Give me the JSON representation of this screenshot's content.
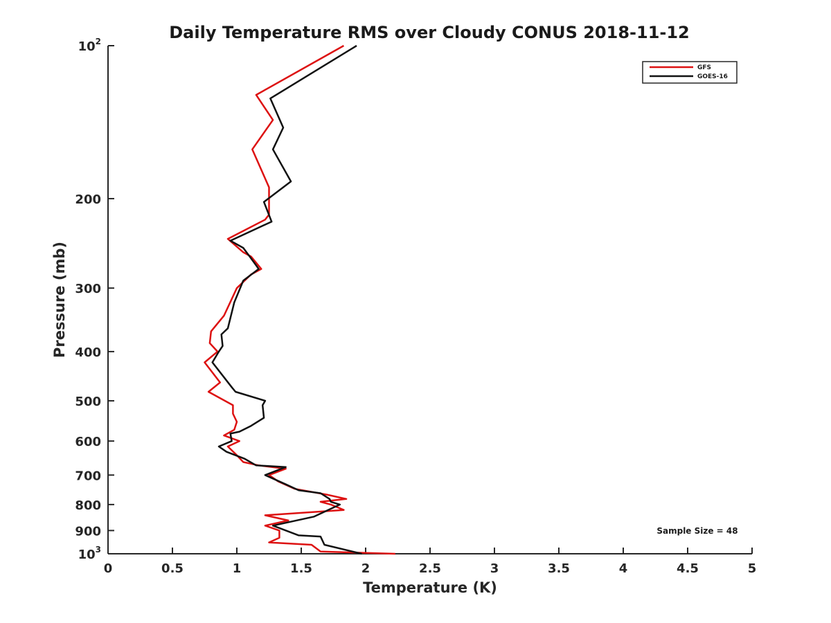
{
  "chart_data": {
    "type": "line",
    "title": "Daily Temperature RMS over Cloudy CONUS 2018-11-12",
    "xlabel": "Temperature (K)",
    "ylabel": "Pressure (mb)",
    "xlim": [
      0,
      5
    ],
    "ylim": [
      100,
      1000
    ],
    "y_scale": "log",
    "y_reversed": true,
    "x_ticks": [
      "0",
      "0.5",
      "1",
      "1.5",
      "2",
      "2.5",
      "3",
      "3.5",
      "4",
      "4.5",
      "5"
    ],
    "y_ticks": [
      {
        "value": 100,
        "base": "10",
        "exp": "2"
      },
      {
        "value": 200,
        "base": "200",
        "exp": ""
      },
      {
        "value": 300,
        "base": "300",
        "exp": ""
      },
      {
        "value": 400,
        "base": "400",
        "exp": ""
      },
      {
        "value": 500,
        "base": "500",
        "exp": ""
      },
      {
        "value": 600,
        "base": "600",
        "exp": ""
      },
      {
        "value": 700,
        "base": "700",
        "exp": ""
      },
      {
        "value": 800,
        "base": "800",
        "exp": ""
      },
      {
        "value": 900,
        "base": "900",
        "exp": ""
      },
      {
        "value": 1000,
        "base": "10",
        "exp": "3"
      }
    ],
    "grid": false,
    "legend_position": "top-right",
    "annotation": "Sample Size = 48",
    "series": [
      {
        "name": "GFS",
        "color": "#dd1111",
        "points": [
          [
            1.83,
            100
          ],
          [
            1.15,
            125
          ],
          [
            1.28,
            140
          ],
          [
            1.12,
            160
          ],
          [
            1.25,
            190
          ],
          [
            1.25,
            215
          ],
          [
            1.22,
            220
          ],
          [
            0.93,
            240
          ],
          [
            1.05,
            255
          ],
          [
            1.11,
            260
          ],
          [
            1.19,
            275
          ],
          [
            1.11,
            282
          ],
          [
            1.0,
            300
          ],
          [
            0.9,
            340
          ],
          [
            0.8,
            365
          ],
          [
            0.79,
            385
          ],
          [
            0.85,
            400
          ],
          [
            0.75,
            420
          ],
          [
            0.87,
            460
          ],
          [
            0.78,
            480
          ],
          [
            0.97,
            510
          ],
          [
            0.97,
            530
          ],
          [
            1.0,
            550
          ],
          [
            0.98,
            570
          ],
          [
            0.9,
            585
          ],
          [
            1.02,
            600
          ],
          [
            0.93,
            615
          ],
          [
            1.0,
            640
          ],
          [
            1.05,
            660
          ],
          [
            1.17,
            670
          ],
          [
            1.38,
            680
          ],
          [
            1.25,
            700
          ],
          [
            1.32,
            720
          ],
          [
            1.45,
            745
          ],
          [
            1.7,
            765
          ],
          [
            1.85,
            780
          ],
          [
            1.65,
            790
          ],
          [
            1.73,
            800
          ],
          [
            1.83,
            820
          ],
          [
            1.22,
            840
          ],
          [
            1.4,
            860
          ],
          [
            1.22,
            880
          ],
          [
            1.33,
            900
          ],
          [
            1.33,
            930
          ],
          [
            1.25,
            950
          ],
          [
            1.58,
            960
          ],
          [
            1.65,
            990
          ],
          [
            2.23,
            1000
          ]
        ]
      },
      {
        "name": "GOES-16",
        "color": "#111111",
        "points": [
          [
            1.93,
            100
          ],
          [
            1.26,
            127
          ],
          [
            1.36,
            145
          ],
          [
            1.28,
            160
          ],
          [
            1.42,
            185
          ],
          [
            1.21,
            203
          ],
          [
            1.27,
            222
          ],
          [
            0.95,
            242
          ],
          [
            1.05,
            250
          ],
          [
            1.1,
            260
          ],
          [
            1.17,
            275
          ],
          [
            1.05,
            290
          ],
          [
            0.98,
            320
          ],
          [
            0.93,
            360
          ],
          [
            0.88,
            370
          ],
          [
            0.89,
            390
          ],
          [
            0.86,
            400
          ],
          [
            0.81,
            420
          ],
          [
            0.96,
            470
          ],
          [
            0.99,
            480
          ],
          [
            1.22,
            500
          ],
          [
            1.2,
            510
          ],
          [
            1.21,
            540
          ],
          [
            1.11,
            560
          ],
          [
            1.02,
            575
          ],
          [
            0.95,
            580
          ],
          [
            0.96,
            600
          ],
          [
            0.86,
            615
          ],
          [
            0.92,
            630
          ],
          [
            1.06,
            650
          ],
          [
            1.15,
            670
          ],
          [
            1.38,
            675
          ],
          [
            1.22,
            700
          ],
          [
            1.38,
            730
          ],
          [
            1.48,
            750
          ],
          [
            1.65,
            760
          ],
          [
            1.72,
            780
          ],
          [
            1.73,
            790
          ],
          [
            1.8,
            800
          ],
          [
            1.6,
            845
          ],
          [
            1.28,
            880
          ],
          [
            1.48,
            920
          ],
          [
            1.65,
            925
          ],
          [
            1.68,
            960
          ],
          [
            1.97,
            1000
          ]
        ]
      }
    ]
  }
}
